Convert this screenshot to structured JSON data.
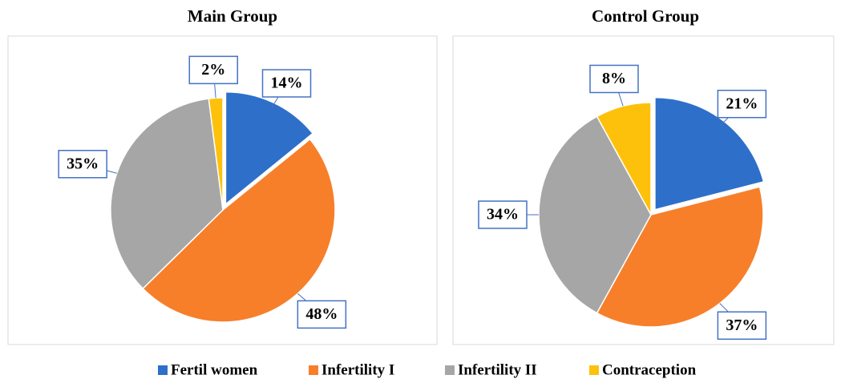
{
  "chart_data": [
    {
      "type": "pie",
      "title": "Main Group",
      "categories": [
        "Fertil women",
        "Infertility I",
        "Infertility II",
        "Contraception"
      ],
      "values": [
        14,
        48,
        35,
        2
      ],
      "value_labels": [
        "14%",
        "48%",
        "35%",
        "2%"
      ],
      "colors": [
        "#2e6fc9",
        "#f77f2a",
        "#a6a6a6",
        "#fec10b"
      ]
    },
    {
      "type": "pie",
      "title": "Control Group",
      "categories": [
        "Fertil women",
        "Infertility I",
        "Infertility II",
        "Contraception"
      ],
      "values": [
        21,
        37,
        34,
        8
      ],
      "value_labels": [
        "21%",
        "37%",
        "34%",
        "8%"
      ],
      "colors": [
        "#2e6fc9",
        "#f77f2a",
        "#a6a6a6",
        "#fec10b"
      ]
    }
  ]
}
